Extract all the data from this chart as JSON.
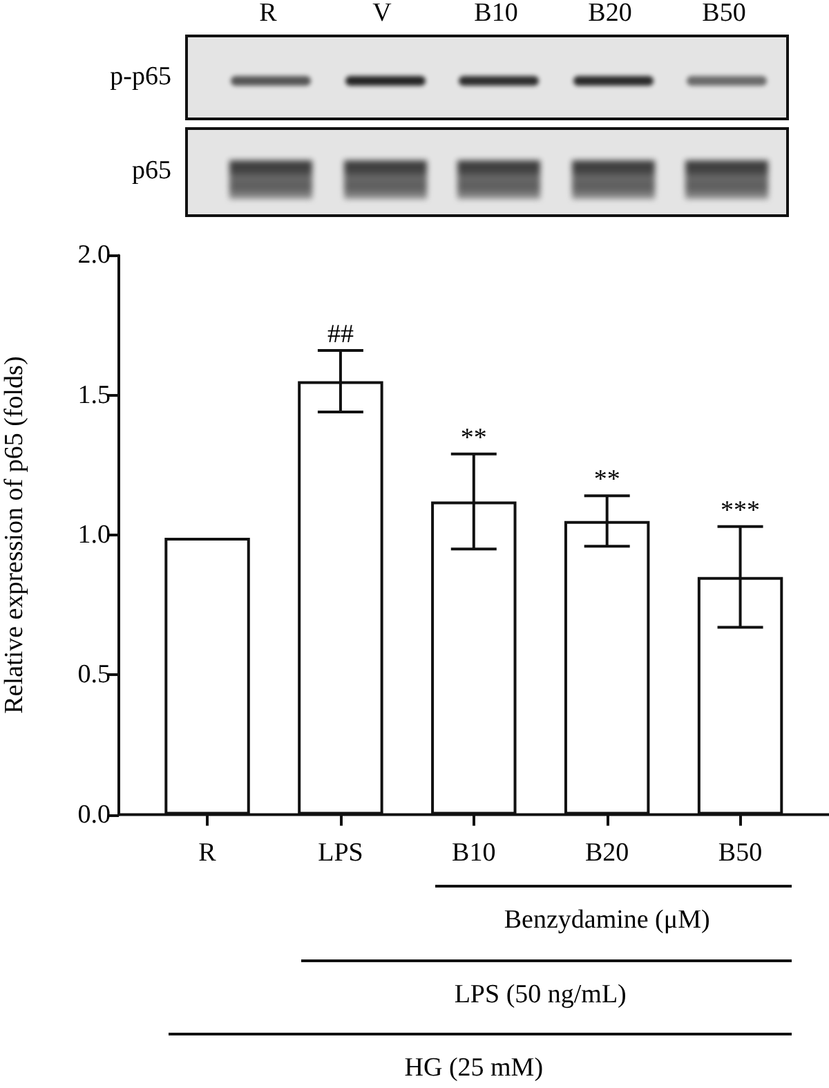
{
  "chart_data": {
    "type": "bar",
    "categories": [
      "R",
      "LPS",
      "B10",
      "B20",
      "B50"
    ],
    "values": [
      0.99,
      1.55,
      1.12,
      1.05,
      0.85
    ],
    "errors": [
      null,
      0.11,
      0.17,
      0.09,
      0.18
    ],
    "color": "#ffffff",
    "ylabel": "Relative expression of p65 (folds)",
    "ylim": [
      0,
      2
    ],
    "yticks": [
      {
        "value": 0,
        "label": "0.0"
      },
      0.5,
      {
        "value": 1,
        "label": "1.0"
      },
      1.5,
      {
        "value": 2,
        "label": "2.0"
      }
    ],
    "annotations": [
      "##",
      "**",
      "**",
      "***",
      "Benzydamine (μM)",
      "LPS (50 ng/mL)",
      "HG (25 mM)",
      "R",
      "V",
      "B10",
      "B20",
      "B50",
      "p-p65",
      "p65"
    ]
  }
}
